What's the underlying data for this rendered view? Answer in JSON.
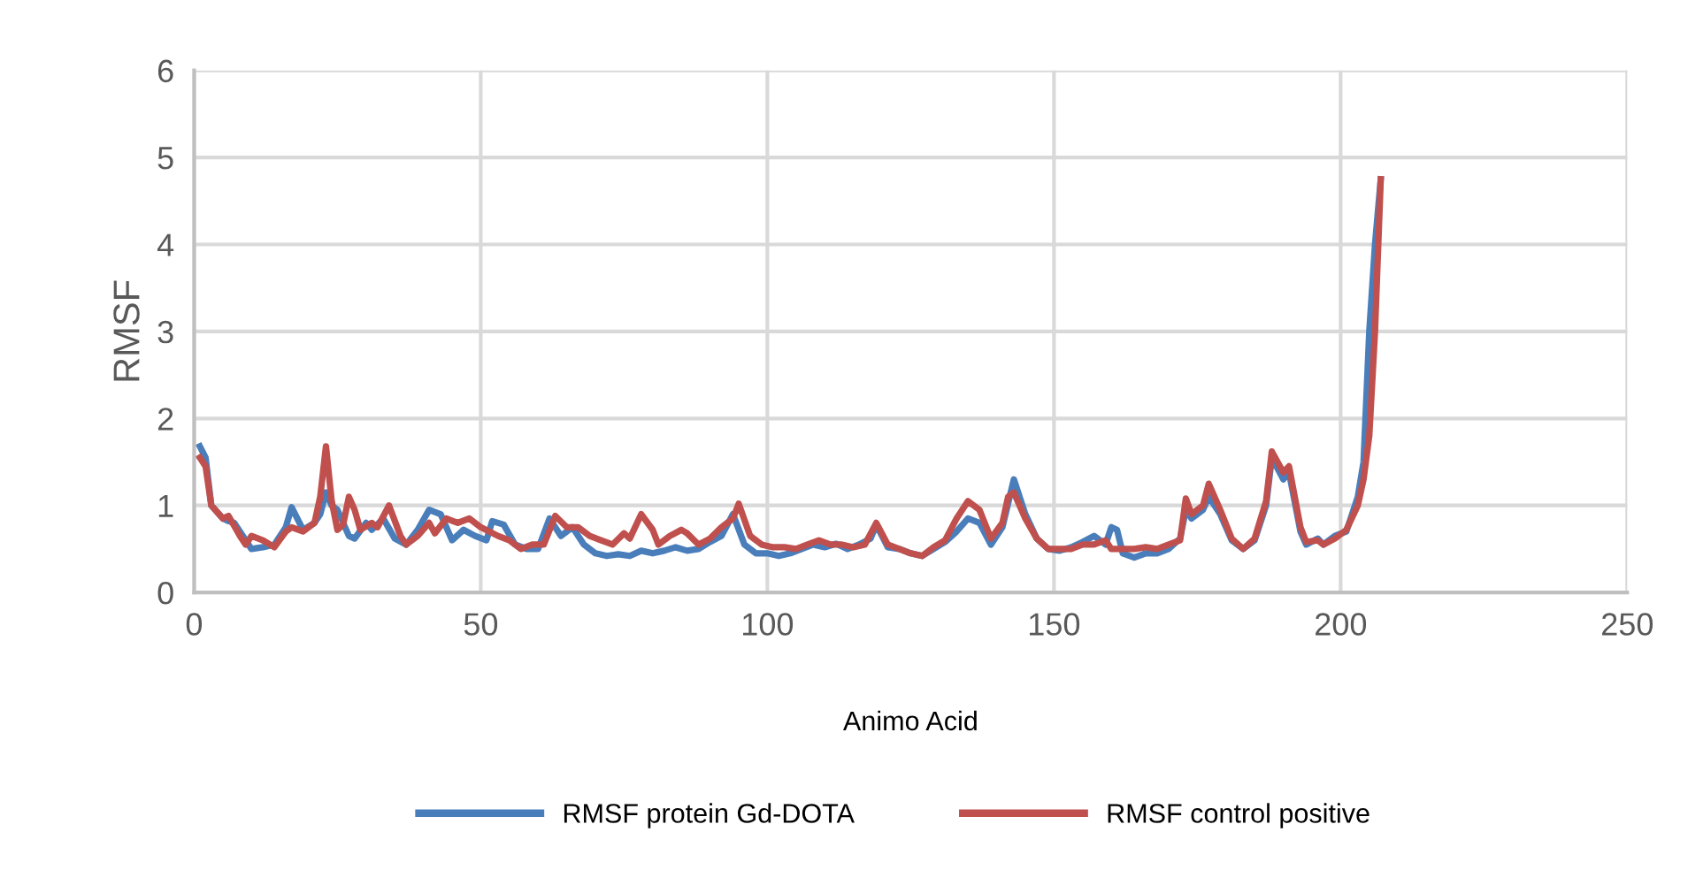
{
  "chart_data": {
    "type": "line",
    "xlabel": "Animo Acid",
    "ylabel": "RMSF",
    "xlim": [
      0,
      250
    ],
    "xticks": [
      0,
      50,
      100,
      150,
      200,
      250
    ],
    "ylim": [
      0,
      6
    ],
    "yticks": [
      0,
      1,
      2,
      3,
      4,
      5,
      6
    ],
    "grid": true,
    "legend": "bottom",
    "marker": "none",
    "line_style": "solid",
    "series": [
      {
        "name": "RMSF protein Gd-DOTA",
        "color": "#4a7ebb",
        "x": [
          1,
          2,
          3,
          5,
          6,
          7,
          9,
          10,
          12,
          14,
          16,
          17,
          19,
          21,
          22,
          23,
          24,
          25,
          27,
          28,
          30,
          31,
          33,
          35,
          37,
          39,
          41,
          43,
          45,
          47,
          49,
          51,
          52,
          54,
          56,
          58,
          60,
          62,
          64,
          66,
          68,
          70,
          72,
          74,
          76,
          78,
          80,
          82,
          84,
          86,
          88,
          90,
          92,
          94,
          96,
          98,
          100,
          102,
          104,
          106,
          108,
          110,
          112,
          114,
          116,
          118,
          119,
          121,
          123,
          125,
          127,
          129,
          131,
          133,
          135,
          137,
          139,
          141,
          143,
          145,
          147,
          149,
          151,
          153,
          155,
          157,
          159,
          160,
          161,
          162,
          164,
          166,
          168,
          170,
          172,
          173,
          174,
          176,
          177,
          179,
          181,
          183,
          185,
          187,
          188,
          190,
          191,
          193,
          194,
          196,
          197,
          199,
          201,
          203,
          204,
          205,
          206,
          207
        ],
        "values": [
          1.68,
          1.55,
          1.0,
          0.85,
          0.82,
          0.8,
          0.6,
          0.5,
          0.52,
          0.55,
          0.75,
          0.98,
          0.72,
          0.8,
          0.9,
          1.15,
          1.0,
          0.95,
          0.65,
          0.62,
          0.8,
          0.72,
          0.85,
          0.62,
          0.55,
          0.72,
          0.95,
          0.9,
          0.6,
          0.72,
          0.65,
          0.6,
          0.82,
          0.78,
          0.55,
          0.5,
          0.5,
          0.85,
          0.65,
          0.75,
          0.55,
          0.45,
          0.42,
          0.44,
          0.42,
          0.48,
          0.45,
          0.48,
          0.52,
          0.48,
          0.5,
          0.58,
          0.65,
          0.9,
          0.55,
          0.45,
          0.45,
          0.42,
          0.45,
          0.5,
          0.55,
          0.52,
          0.56,
          0.5,
          0.55,
          0.62,
          0.78,
          0.52,
          0.5,
          0.45,
          0.42,
          0.5,
          0.58,
          0.7,
          0.85,
          0.8,
          0.55,
          0.75,
          1.3,
          0.9,
          0.62,
          0.5,
          0.48,
          0.52,
          0.58,
          0.65,
          0.55,
          0.75,
          0.72,
          0.45,
          0.4,
          0.45,
          0.45,
          0.5,
          0.62,
          0.95,
          0.85,
          0.95,
          1.1,
          0.9,
          0.6,
          0.5,
          0.6,
          1.0,
          1.55,
          1.3,
          1.38,
          0.7,
          0.55,
          0.62,
          0.55,
          0.65,
          0.7,
          1.1,
          1.5,
          3.0,
          4.0,
          4.75
        ]
      },
      {
        "name": "RMSF control positive",
        "color": "#c0504d",
        "x": [
          1,
          2,
          3,
          5,
          6,
          8,
          9,
          10,
          12,
          14,
          16,
          17,
          19,
          21,
          22,
          23,
          24,
          25,
          26,
          27,
          28,
          29,
          31,
          32,
          34,
          36,
          37,
          39,
          41,
          42,
          44,
          46,
          48,
          50,
          53,
          55,
          57,
          59,
          61,
          63,
          65,
          67,
          69,
          71,
          73,
          75,
          76,
          78,
          80,
          81,
          83,
          85,
          86,
          88,
          90,
          92,
          94,
          95,
          97,
          99,
          101,
          103,
          105,
          107,
          109,
          111,
          113,
          115,
          117,
          119,
          121,
          123,
          125,
          127,
          129,
          131,
          133,
          135,
          137,
          139,
          141,
          142,
          143,
          145,
          147,
          149,
          151,
          153,
          155,
          157,
          159,
          160,
          162,
          164,
          166,
          168,
          170,
          172,
          173,
          174,
          176,
          177,
          179,
          181,
          183,
          185,
          187,
          188,
          190,
          191,
          193,
          194,
          196,
          197,
          199,
          201,
          203,
          204,
          205,
          206,
          207
        ],
        "values": [
          1.55,
          1.45,
          1.0,
          0.85,
          0.88,
          0.65,
          0.55,
          0.65,
          0.6,
          0.52,
          0.7,
          0.75,
          0.7,
          0.8,
          1.1,
          1.68,
          1.05,
          0.72,
          0.78,
          1.1,
          0.95,
          0.72,
          0.8,
          0.75,
          1.0,
          0.65,
          0.55,
          0.65,
          0.8,
          0.68,
          0.85,
          0.8,
          0.85,
          0.75,
          0.65,
          0.6,
          0.5,
          0.55,
          0.55,
          0.88,
          0.75,
          0.75,
          0.65,
          0.6,
          0.55,
          0.68,
          0.62,
          0.9,
          0.72,
          0.55,
          0.65,
          0.72,
          0.68,
          0.55,
          0.62,
          0.75,
          0.85,
          1.02,
          0.65,
          0.55,
          0.52,
          0.52,
          0.5,
          0.55,
          0.6,
          0.55,
          0.55,
          0.52,
          0.55,
          0.8,
          0.55,
          0.5,
          0.45,
          0.42,
          0.52,
          0.6,
          0.85,
          1.05,
          0.95,
          0.62,
          0.8,
          1.1,
          1.15,
          0.85,
          0.62,
          0.5,
          0.5,
          0.5,
          0.55,
          0.55,
          0.6,
          0.5,
          0.5,
          0.5,
          0.52,
          0.5,
          0.55,
          0.6,
          1.08,
          0.9,
          1.0,
          1.25,
          0.95,
          0.62,
          0.5,
          0.62,
          1.05,
          1.62,
          1.38,
          1.45,
          0.75,
          0.58,
          0.6,
          0.55,
          0.62,
          0.72,
          1.0,
          1.3,
          1.8,
          3.0,
          4.75
        ]
      }
    ]
  }
}
